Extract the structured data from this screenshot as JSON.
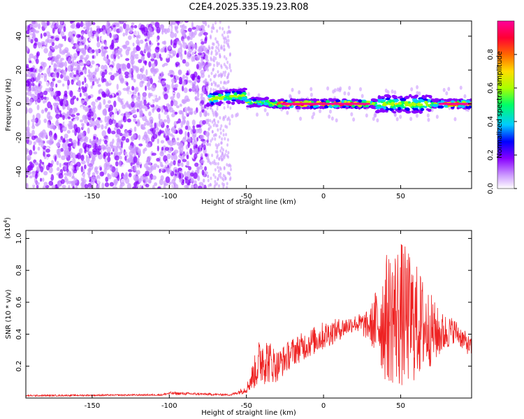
{
  "figure_title": "C2E4.2025.335.19.23.R08",
  "chart_data": [
    {
      "type": "heatmap",
      "title": "C2E4.2025.335.19.23.R08",
      "xlabel": "Height of straight line (km)",
      "ylabel": "Frequency (Hz)",
      "xlim": [
        -193,
        96
      ],
      "ylim": [
        -50,
        49
      ],
      "xticks": [
        -150,
        -100,
        -50,
        0,
        50
      ],
      "yticks": [
        -40,
        -20,
        0,
        20,
        40
      ],
      "colorbar": {
        "label": "Normalized spectral amplitude",
        "range": [
          0.0,
          1.0
        ],
        "ticks": [
          0.0,
          0.2,
          0.4,
          0.6,
          0.8
        ],
        "colormap": [
          "#ffffff",
          "#cc99ff",
          "#8800ff",
          "#0000ff",
          "#00ccff",
          "#00ff66",
          "#aaff00",
          "#ffdd00",
          "#ff6600",
          "#ff0033",
          "#ff0099"
        ]
      },
      "description_regions": [
        {
          "region": "noise",
          "x_range": [
            -193,
            -75
          ],
          "freq_range": [
            -50,
            49
          ],
          "amplitude": 0.1
        },
        {
          "region": "sparse",
          "x_range": [
            -75,
            -60
          ],
          "freq_range": [
            -50,
            49
          ],
          "amplitude": 0.05
        },
        {
          "region": "signal_band",
          "x_range": [
            -75,
            96
          ],
          "center_freq": 0,
          "amplitude_peak": 1.0
        }
      ]
    },
    {
      "type": "line",
      "xlabel": "Height of straight line (km)",
      "ylabel": "SNR (10 * v/v)",
      "y_multiplier_label": "(x10",
      "y_multiplier_exp": "4",
      "xlim": [
        -193,
        96
      ],
      "ylim": [
        0,
        1.05
      ],
      "xticks": [
        -150,
        -100,
        -50,
        0,
        50
      ],
      "yticks": [
        0.2,
        0.4,
        0.6,
        0.8,
        1.0
      ],
      "ytick_labels": [
        "0.2",
        "0.4",
        "0.6",
        "0.8",
        "1.0"
      ],
      "series": [
        {
          "name": "SNR",
          "color": "#ee2222",
          "envelope": [
            {
              "x": -193,
              "base": 0.01,
              "spread": 0.01
            },
            {
              "x": -105,
              "base": 0.015,
              "spread": 0.01
            },
            {
              "x": -100,
              "base": 0.02,
              "spread": 0.02
            },
            {
              "x": -60,
              "base": 0.015,
              "spread": 0.01
            },
            {
              "x": -50,
              "base": 0.03,
              "spread": 0.05
            },
            {
              "x": -40,
              "base": 0.08,
              "spread": 0.35
            },
            {
              "x": -30,
              "base": 0.1,
              "spread": 0.2
            },
            {
              "x": -20,
              "base": 0.2,
              "spread": 0.18
            },
            {
              "x": 0,
              "base": 0.3,
              "spread": 0.18
            },
            {
              "x": 20,
              "base": 0.42,
              "spread": 0.1
            },
            {
              "x": 30,
              "base": 0.35,
              "spread": 0.2
            },
            {
              "x": 40,
              "base": 0.1,
              "spread": 0.8
            },
            {
              "x": 50,
              "base": 0.05,
              "spread": 0.95
            },
            {
              "x": 60,
              "base": 0.1,
              "spread": 0.75
            },
            {
              "x": 75,
              "base": 0.25,
              "spread": 0.3
            },
            {
              "x": 85,
              "base": 0.35,
              "spread": 0.15
            },
            {
              "x": 96,
              "base": 0.25,
              "spread": 0.12
            }
          ]
        }
      ]
    }
  ]
}
